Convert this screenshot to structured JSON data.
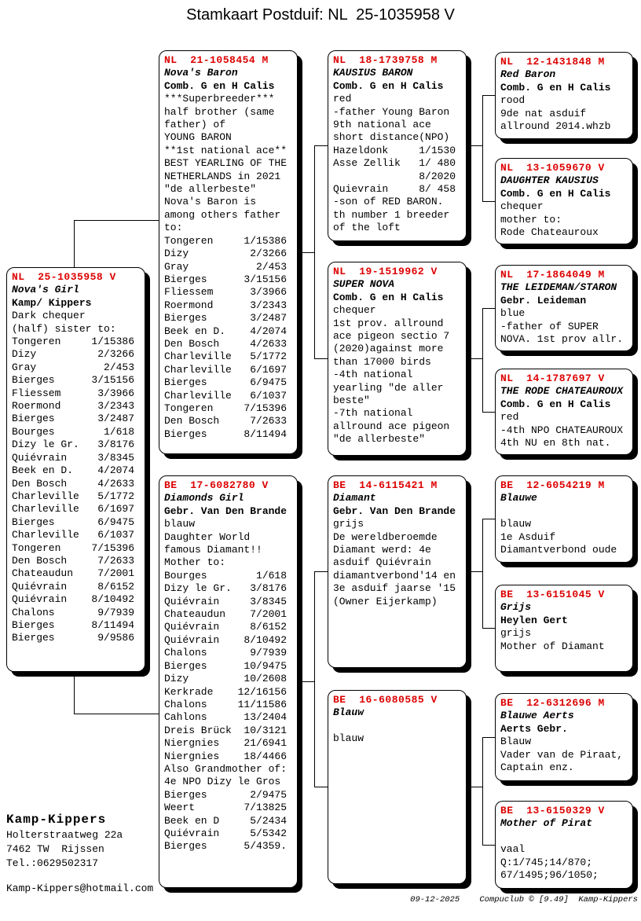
{
  "title": "Stamkaart Postduif: NL  25-1035958 V",
  "colors": {
    "ring_red": "#dd0000"
  },
  "boxes": [
    {
      "ring": "NL  25-1035958 V",
      "name": "Nova's Girl",
      "owner": "Kamp/ Kippers",
      "lines": [
        "Dark chequer",
        "(half) sister to:",
        "Tongeren     1/15386",
        "Dizy          2/3266",
        "Gray           2/453",
        "Bierges      3/15156",
        "Fliessem      3/3966",
        "Roermond      3/2343",
        "Bierges       3/2487",
        "Bourges        1/618",
        "Dizy le Gr.   3/8176",
        "Quiévrain     3/8345",
        "Beek en D.    4/2074",
        "Den Bosch     4/2633",
        "Charleville   5/1772",
        "Charleville   6/1697",
        "Bierges       6/9475",
        "Charleville   6/1037",
        "Tongeren     7/15396",
        "Den Bosch     7/2633",
        "Chateaudun    7/2001",
        "Quiévrain     8/6152",
        "Quiévrain    8/10492",
        "Chalons       9/7939",
        "Bierges      8/11494",
        "Bierges       9/9586"
      ]
    },
    {
      "ring": "NL  21-1058454 M",
      "name": "Nova's Baron",
      "owner": "Comb. G en H Calis",
      "lines": [
        "***Superbreeder***",
        "half brother (same",
        "father) of",
        "YOUNG BARON",
        "**1st national ace**",
        "BEST YEARLING OF THE",
        "NETHERLANDS in 2021",
        "\"de allerbeste\"",
        "Nova's Baron is",
        "among others father",
        "to:",
        "Tongeren     1/15386",
        "Dizy          2/3266",
        "Gray           2/453",
        "Bierges      3/15156",
        "Fliessem      3/3966",
        "Roermond      3/2343",
        "Bierges       3/2487",
        "Beek en D.    4/2074",
        "Den Bosch     4/2633",
        "Charleville   5/1772",
        "Charleville   6/1697",
        "Bierges       6/9475",
        "Charleville   6/1037",
        "Tongeren     7/15396",
        "Den Bosch     7/2633",
        "Bierges      8/11494"
      ]
    },
    {
      "ring": "BE  17-6082780 V",
      "name": "Diamonds Girl",
      "owner": "Gebr. Van Den Brande",
      "lines": [
        "blauw",
        "Daughter World",
        "famous Diamant!!",
        "Mother to:",
        "Bourges        1/618",
        "Dizy le Gr.   3/8176",
        "Quiévrain     3/8345",
        "Chateaudun    7/2001",
        "Quiévrain     8/6152",
        "Quiévrain    8/10492",
        "Chalons       9/7939",
        "Bierges      10/9475",
        "Dizy         10/2608",
        "Kerkrade    12/16156",
        "Chalons     11/11586",
        "Cahlons      13/2404",
        "Dreis Brück  10/3121",
        "Niergnies    21/6941",
        "Niergnies    18/4466",
        "Also Grandmother of:",
        "4e NPO Dizy le Gros",
        "Bierges       2/9475",
        "Weert        7/13825",
        "Beek en D     5/2434",
        "Quiévrain     5/5342",
        "Bierges      5/4359."
      ]
    },
    {
      "ring": "NL  18-1739758 M",
      "name": "KAUSIUS BARON",
      "owner": "Comb. G en H Calis",
      "lines": [
        "red",
        "-father Young Baron",
        "9th national ace",
        "short distance(NPO)",
        "Hazeldonk     1/1530",
        "Asse Zellik   1/ 480",
        "              8/2020",
        "Quievrain     8/ 458",
        "-son of RED BARON.",
        "th number 1 breeder",
        "of the loft"
      ]
    },
    {
      "ring": "NL  19-1519962 V",
      "name": "SUPER NOVA",
      "owner": "Comb. G en H Calis",
      "lines": [
        "chequer",
        "1st prov. allround",
        "ace pigeon sectio 7",
        "(2020)against more",
        "than 17000 birds",
        "-4th national",
        "yearling \"de aller",
        "beste\"",
        "-7th national",
        "allround ace pigeon",
        "\"de allerbeste\""
      ]
    },
    {
      "ring": "BE  14-6115421 M",
      "name": "Diamant",
      "owner": "Gebr. Van Den Brande",
      "lines": [
        "grijs",
        "De wereldberoemde",
        "Diamant werd: 4e",
        "asduif Quiévrain",
        "diamantverbond'14 en",
        "3e asduif jaarse '15",
        "(Owner Eijerkamp)"
      ]
    },
    {
      "ring": "BE  16-6080585 V",
      "name": "Blauw",
      "owner": "",
      "lines": [
        "blauw"
      ]
    },
    {
      "ring": "NL  12-1431848 M",
      "name": "Red Baron",
      "owner": "Comb. G en H Calis",
      "lines": [
        "rood",
        "9de nat asduif",
        "allround 2014.whzb"
      ]
    },
    {
      "ring": "NL  13-1059670 V",
      "name": "DAUGHTER KAUSIUS",
      "owner": "Comb. G en H Calis",
      "lines": [
        "chequer",
        "mother to:",
        "Rode Chateauroux"
      ]
    },
    {
      "ring": "NL  17-1864049 M",
      "name": "THE LEIDEMAN/STARON",
      "owner": "Gebr. Leideman",
      "lines": [
        "blue",
        "-father of SUPER",
        "NOVA. 1st prov allr."
      ]
    },
    {
      "ring": "NL  14-1787697 V",
      "name": "THE RODE CHATEAUROUX",
      "owner": "Comb. G en H Calis",
      "lines": [
        "red",
        "-4th NPO CHATEAUROUX",
        "4th NU en 8th nat."
      ]
    },
    {
      "ring": "BE  12-6054219 M",
      "name": "Blauwe",
      "owner": "",
      "lines": [
        "blauw",
        "1e Asduif",
        "Diamantverbond oude"
      ]
    },
    {
      "ring": "BE  13-6151045 V",
      "name": "Grijs",
      "owner": "Heylen Gert",
      "lines": [
        "grijs",
        "Mother of Diamant"
      ]
    },
    {
      "ring": "BE  12-6312696 M",
      "name": "Blauwe Aerts",
      "owner": "Aerts Gebr.",
      "lines": [
        "Blauw",
        "Vader van de Piraat,",
        "Captain enz."
      ]
    },
    {
      "ring": "BE  13-6150329 V",
      "name": "Mother of Pirat",
      "owner": "",
      "lines": [
        "vaal",
        "Q:1/745;14/870;",
        "67/1495;96/1050;"
      ]
    }
  ],
  "contact": {
    "name": "Kamp-Kippers",
    "address1": "Holterstraatweg 22a",
    "address2": "7462 TW  Rijssen",
    "phone": "Tel.:0629502317",
    "email": "Kamp-Kippers@hotmail.com"
  },
  "footer": "09-12-2025    Compuclub © [9.49]  Kamp-Kippers"
}
